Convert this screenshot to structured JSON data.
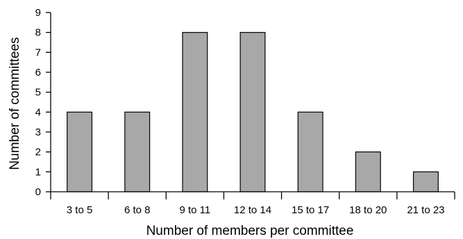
{
  "chart_data": {
    "type": "bar",
    "categories": [
      "3 to 5",
      "6 to 8",
      "9 to 11",
      "12 to 14",
      "15 to 17",
      "18 to 20",
      "21 to 23"
    ],
    "values": [
      4,
      4,
      8,
      8,
      4,
      2,
      1
    ],
    "xlabel": "Number of members per committee",
    "ylabel": "Number of committees",
    "ylim": [
      0,
      9
    ],
    "yticks": [
      0,
      1,
      2,
      3,
      4,
      5,
      6,
      7,
      8,
      9
    ],
    "grid": false,
    "legend": "none",
    "colors": {
      "bar_fill": "#a8a8a8",
      "bar_stroke": "#000000",
      "axis": "#000000"
    }
  }
}
